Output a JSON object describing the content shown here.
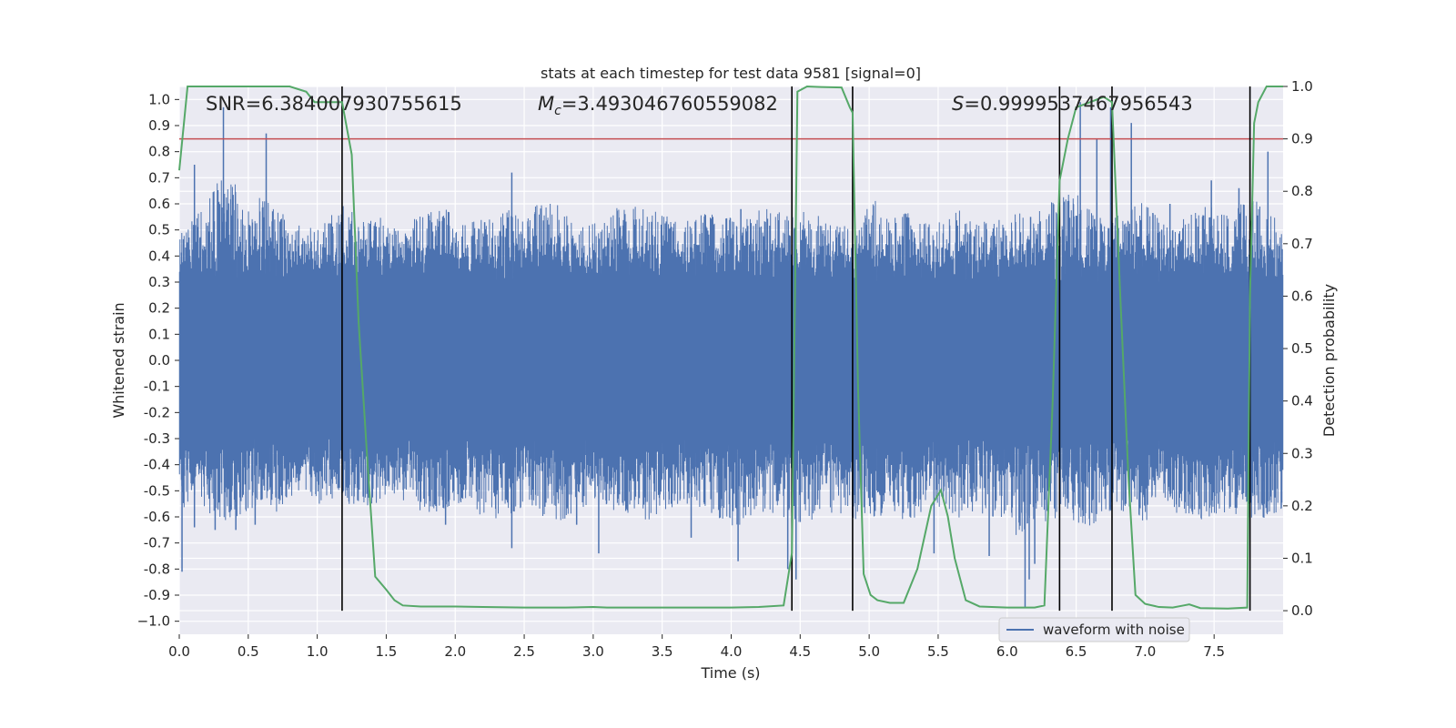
{
  "chart_data": {
    "type": "line",
    "title": "stats at each timestep for test data 9581 [signal=0]",
    "xlabel": "Time (s)",
    "ylabel": "Whitened strain",
    "y2label": "Detection probability",
    "xlim": [
      0.0,
      8.0
    ],
    "ylim": [
      -1.05,
      1.05
    ],
    "y2lim": [
      -0.045,
      1.0
    ],
    "xticks": [
      "0.0",
      "0.5",
      "1.0",
      "1.5",
      "2.0",
      "2.5",
      "3.0",
      "3.5",
      "4.0",
      "4.5",
      "5.0",
      "5.5",
      "6.0",
      "6.5",
      "7.0",
      "7.5"
    ],
    "yticks": [
      "1.0",
      "0.9",
      "0.8",
      "0.7",
      "0.6",
      "0.5",
      "0.4",
      "0.3",
      "0.2",
      "0.1",
      "0.0",
      "-0.1",
      "-0.2",
      "-0.3",
      "-0.4",
      "-0.5",
      "-0.6",
      "-0.7",
      "-0.8",
      "-0.9",
      "−1.0"
    ],
    "y2ticks": [
      "1.0",
      "0.9",
      "0.8",
      "0.7",
      "0.6",
      "0.5",
      "0.4",
      "0.3",
      "0.2",
      "0.1",
      "0.0"
    ],
    "annotations": {
      "snr": "SNR=6.384007930755615",
      "mc_symbol": "M",
      "mc_sub": "c",
      "mc_value": "=3.493046760559082",
      "s_symbol": "S",
      "s_value": "=0.9999537467956543"
    },
    "threshold": {
      "value": 0.9,
      "axis": "y2",
      "color": "#c44e52"
    },
    "vertical_lines": [
      1.18,
      4.44,
      4.88,
      6.38,
      6.76,
      7.76
    ],
    "series": [
      {
        "name": "waveform with noise",
        "axis": "y",
        "color": "#4c72b0",
        "envelope_pos": [
          0.48,
          0.55,
          0.62,
          0.72,
          0.68,
          0.6,
          0.63,
          0.57,
          0.55,
          0.5,
          0.52,
          0.57,
          0.6,
          0.55,
          0.56,
          0.53,
          0.5,
          0.55,
          0.58,
          0.6,
          0.52,
          0.54,
          0.55,
          0.57,
          0.58,
          0.57,
          0.62,
          0.6,
          0.55,
          0.52,
          0.55,
          0.58,
          0.6,
          0.6,
          0.58,
          0.55,
          0.52,
          0.58,
          0.57,
          0.56,
          0.53,
          0.55,
          0.6,
          0.57,
          0.55,
          0.58,
          0.55,
          0.52,
          0.55,
          0.58,
          0.62,
          0.55,
          0.57,
          0.55,
          0.53,
          0.55,
          0.58,
          0.55,
          0.52,
          0.55,
          0.58,
          0.57,
          0.6,
          0.62,
          0.65,
          0.6,
          0.55,
          0.55,
          0.58,
          0.62,
          0.55,
          0.5,
          0.55,
          0.58,
          0.6,
          0.57,
          0.6,
          0.62,
          0.6,
          0.55
        ],
        "envelope_neg": [
          -0.6,
          -0.55,
          -0.58,
          -0.62,
          -0.6,
          -0.58,
          -0.55,
          -0.6,
          -0.55,
          -0.5,
          -0.55,
          -0.58,
          -0.55,
          -0.57,
          -0.55,
          -0.52,
          -0.55,
          -0.58,
          -0.6,
          -0.57,
          -0.55,
          -0.58,
          -0.6,
          -0.62,
          -0.58,
          -0.55,
          -0.6,
          -0.62,
          -0.6,
          -0.57,
          -0.55,
          -0.58,
          -0.6,
          -0.63,
          -0.6,
          -0.57,
          -0.55,
          -0.58,
          -0.6,
          -0.62,
          -0.65,
          -0.6,
          -0.58,
          -0.6,
          -0.63,
          -0.62,
          -0.6,
          -0.58,
          -0.6,
          -0.62,
          -0.6,
          -0.58,
          -0.62,
          -0.6,
          -0.58,
          -0.6,
          -0.62,
          -0.58,
          -0.6,
          -0.62,
          -0.68,
          -0.65,
          -0.62,
          -0.6,
          -0.62,
          -0.65,
          -0.6,
          -0.58,
          -0.6,
          -0.62,
          -0.6,
          -0.58,
          -0.6,
          -0.62,
          -0.6,
          -0.58,
          -0.6,
          -0.62,
          -0.6,
          -0.58
        ],
        "spikes": [
          {
            "t": 0.02,
            "v": -0.81
          },
          {
            "t": 0.11,
            "v": 0.75
          },
          {
            "t": 0.11,
            "v": -0.64
          },
          {
            "t": 0.32,
            "v": 0.97
          },
          {
            "t": 0.26,
            "v": -0.65
          },
          {
            "t": 0.41,
            "v": -0.65
          },
          {
            "t": 0.63,
            "v": 0.87
          },
          {
            "t": 0.55,
            "v": -0.63
          },
          {
            "t": 1.93,
            "v": -0.63
          },
          {
            "t": 2.41,
            "v": 0.72
          },
          {
            "t": 2.41,
            "v": -0.72
          },
          {
            "t": 2.88,
            "v": -0.63
          },
          {
            "t": 3.04,
            "v": -0.74
          },
          {
            "t": 3.71,
            "v": -0.68
          },
          {
            "t": 4.05,
            "v": -0.77
          },
          {
            "t": 4.07,
            "v": 0.58
          },
          {
            "t": 4.41,
            "v": -0.8
          },
          {
            "t": 4.47,
            "v": -0.84
          },
          {
            "t": 5.47,
            "v": -0.74
          },
          {
            "t": 5.87,
            "v": -0.75
          },
          {
            "t": 6.13,
            "v": -0.95
          },
          {
            "t": 6.16,
            "v": -0.84
          },
          {
            "t": 6.17,
            "v": 0.55
          },
          {
            "t": 6.2,
            "v": -0.78
          },
          {
            "t": 6.53,
            "v": 0.99
          },
          {
            "t": 6.65,
            "v": 0.85
          },
          {
            "t": 6.75,
            "v": 0.97
          },
          {
            "t": 6.9,
            "v": 0.91
          },
          {
            "t": 7.18,
            "v": 0.6
          },
          {
            "t": 7.48,
            "v": 0.69
          },
          {
            "t": 7.68,
            "v": 0.66
          },
          {
            "t": 7.89,
            "v": 0.8
          }
        ]
      },
      {
        "name": "Detection probability",
        "axis": "y2",
        "color": "#55a868",
        "x": [
          0.0,
          0.06,
          0.2,
          0.4,
          0.6,
          0.8,
          0.92,
          0.98,
          1.05,
          1.18,
          1.25,
          1.3,
          1.36,
          1.42,
          1.5,
          1.56,
          1.62,
          1.75,
          2.0,
          2.2,
          2.5,
          2.8,
          3.0,
          3.1,
          3.5,
          4.0,
          4.2,
          4.38,
          4.44,
          4.48,
          4.55,
          4.65,
          4.8,
          4.86,
          4.88,
          4.92,
          4.96,
          5.01,
          5.06,
          5.15,
          5.25,
          5.35,
          5.45,
          5.52,
          5.57,
          5.62,
          5.7,
          5.8,
          6.0,
          6.2,
          6.27,
          6.33,
          6.38,
          6.44,
          6.5,
          6.6,
          6.7,
          6.76,
          6.82,
          6.88,
          6.93,
          7.0,
          7.1,
          7.2,
          7.28,
          7.32,
          7.4,
          7.6,
          7.74,
          7.76,
          7.79,
          7.82,
          7.88,
          7.92,
          8.0
        ],
        "values": [
          0.84,
          1.0,
          1.0,
          1.0,
          1.0,
          1.0,
          0.99,
          0.97,
          0.97,
          0.97,
          0.87,
          0.55,
          0.3,
          0.065,
          0.04,
          0.02,
          0.01,
          0.008,
          0.008,
          0.007,
          0.006,
          0.006,
          0.007,
          0.006,
          0.006,
          0.006,
          0.007,
          0.01,
          0.11,
          0.99,
          1.0,
          0.999,
          0.998,
          0.96,
          0.95,
          0.42,
          0.07,
          0.03,
          0.02,
          0.015,
          0.015,
          0.08,
          0.2,
          0.23,
          0.18,
          0.1,
          0.02,
          0.008,
          0.006,
          0.006,
          0.01,
          0.4,
          0.82,
          0.9,
          0.96,
          0.97,
          0.98,
          0.97,
          0.6,
          0.25,
          0.03,
          0.013,
          0.007,
          0.006,
          0.01,
          0.012,
          0.005,
          0.004,
          0.006,
          0.6,
          0.93,
          0.97,
          1.0,
          1.0,
          1.0
        ]
      }
    ],
    "legend": {
      "label": "waveform with noise",
      "position": "bottom-right"
    }
  }
}
